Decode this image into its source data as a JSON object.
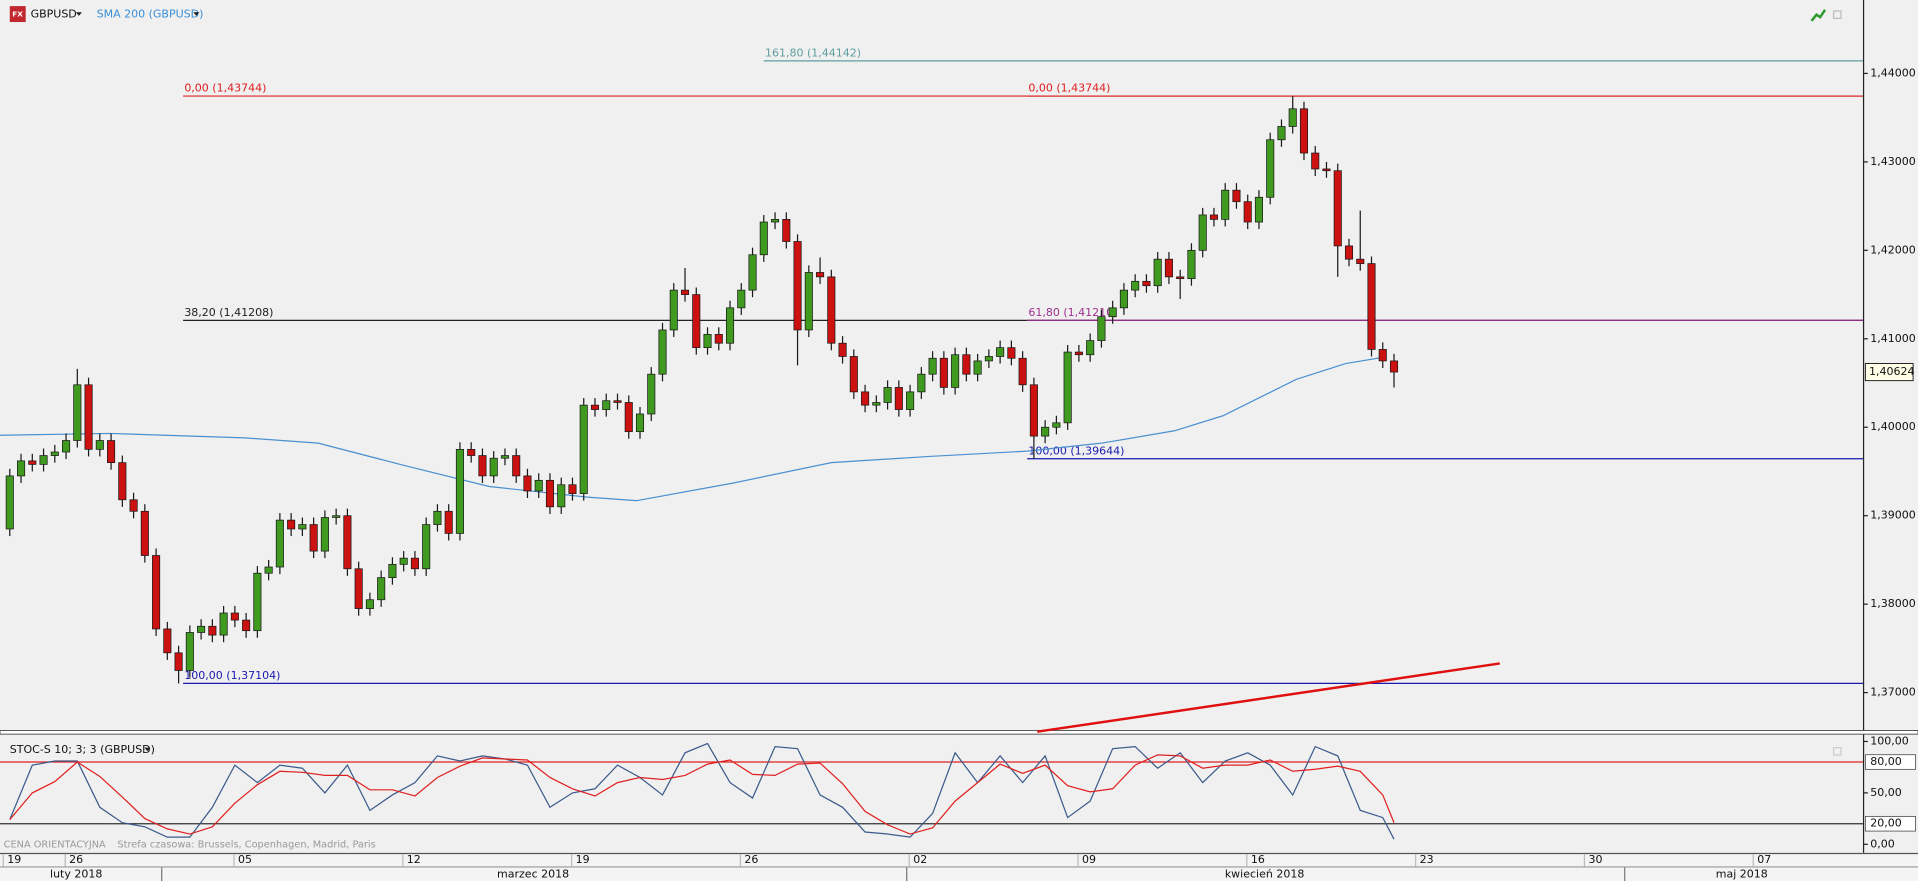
{
  "header": {
    "price_note": "CENA ORIENTACYJNA",
    "timezone": "Strefa czasowa: Brussels, Copenhagen, Madrid, Paris"
  },
  "chart_data": [
    {
      "type": "candlestick",
      "title": "GBPUSD",
      "x": [
        0,
        1,
        2,
        3,
        4,
        5,
        6,
        7,
        8,
        9,
        10,
        11,
        12,
        13,
        14,
        15,
        16,
        17,
        18,
        19,
        20,
        21,
        22,
        23,
        24,
        25,
        26,
        27,
        28,
        29,
        30,
        31,
        32,
        33,
        34,
        35,
        36,
        37,
        38,
        39,
        40,
        41,
        42,
        43,
        44,
        45,
        46,
        47,
        48,
        49,
        50,
        51,
        52,
        53,
        54,
        55,
        56,
        57,
        58,
        59,
        60,
        61,
        62,
        63,
        64,
        65,
        66,
        67,
        68,
        69,
        70,
        71,
        72,
        73,
        74,
        75,
        76,
        77,
        78,
        79,
        80,
        81,
        82,
        83,
        84,
        85,
        86,
        87,
        88,
        89,
        90,
        91,
        92,
        93,
        94,
        95,
        96,
        97,
        98,
        99,
        100,
        101,
        102,
        103,
        104,
        105,
        106,
        107,
        108,
        109,
        110,
        111,
        112,
        113,
        114,
        115,
        116,
        117,
        118,
        119,
        120,
        121,
        122,
        123
      ],
      "open": [
        1.3885,
        1.3945,
        1.3962,
        1.3958,
        1.3968,
        1.3972,
        1.3985,
        1.4048,
        1.3975,
        1.3985,
        1.396,
        1.3918,
        1.3905,
        1.3855,
        1.3772,
        1.3745,
        1.3725,
        1.3768,
        1.3775,
        1.3765,
        1.379,
        1.3782,
        1.377,
        1.3835,
        1.3842,
        1.3895,
        1.3885,
        1.389,
        1.386,
        1.3898,
        1.39,
        1.384,
        1.3795,
        1.3805,
        1.383,
        1.3845,
        1.3852,
        1.384,
        1.389,
        1.3905,
        1.388,
        1.3975,
        1.3968,
        1.3945,
        1.3965,
        1.3968,
        1.3945,
        1.3928,
        1.394,
        1.391,
        1.3935,
        1.3925,
        1.4025,
        1.402,
        1.403,
        1.4028,
        1.3995,
        1.4015,
        1.406,
        1.411,
        1.4155,
        1.415,
        1.409,
        1.4105,
        1.4095,
        1.4135,
        1.4155,
        1.4195,
        1.4232,
        1.4235,
        1.421,
        1.411,
        1.4175,
        1.417,
        1.4095,
        1.408,
        1.404,
        1.4025,
        1.4028,
        1.4045,
        1.402,
        1.404,
        1.406,
        1.4078,
        1.4045,
        1.4082,
        1.406,
        1.4075,
        1.408,
        1.409,
        1.4078,
        1.4048,
        1.399,
        1.4,
        1.4005,
        1.4085,
        1.4082,
        1.4098,
        1.4125,
        1.4135,
        1.4155,
        1.4165,
        1.416,
        1.419,
        1.417,
        1.4168,
        1.42,
        1.424,
        1.4235,
        1.4268,
        1.4255,
        1.4232,
        1.426,
        1.4325,
        1.434,
        1.436,
        1.431,
        1.4292,
        1.429,
        1.4205,
        1.419,
        1.4185,
        1.4088,
        1.4075
      ],
      "high": [
        1.3953,
        1.397,
        1.397,
        1.3976,
        1.398,
        1.3993,
        1.4066,
        1.4056,
        1.3993,
        1.3993,
        1.3968,
        1.3926,
        1.3913,
        1.3863,
        1.378,
        1.3753,
        1.3776,
        1.3783,
        1.3783,
        1.3798,
        1.3798,
        1.379,
        1.3843,
        1.385,
        1.3903,
        1.3903,
        1.3898,
        1.3898,
        1.3906,
        1.3908,
        1.3908,
        1.3848,
        1.3813,
        1.3838,
        1.3853,
        1.386,
        1.386,
        1.3898,
        1.3913,
        1.3913,
        1.3983,
        1.3983,
        1.3976,
        1.3973,
        1.3976,
        1.3976,
        1.3953,
        1.3948,
        1.3948,
        1.3943,
        1.3943,
        1.4033,
        1.4033,
        1.4038,
        1.4038,
        1.4036,
        1.4023,
        1.4068,
        1.4118,
        1.4163,
        1.418,
        1.4158,
        1.4113,
        1.4113,
        1.4143,
        1.4163,
        1.4203,
        1.424,
        1.4243,
        1.4243,
        1.4218,
        1.4183,
        1.4192,
        1.4178,
        1.4103,
        1.4088,
        1.4048,
        1.4036,
        1.4053,
        1.4053,
        1.4048,
        1.4068,
        1.4086,
        1.4086,
        1.409,
        1.409,
        1.4083,
        1.4088,
        1.4098,
        1.4098,
        1.4086,
        1.4056,
        1.4008,
        1.4013,
        1.4093,
        1.4093,
        1.4106,
        1.4133,
        1.4143,
        1.4163,
        1.4173,
        1.4173,
        1.4198,
        1.4198,
        1.4178,
        1.4208,
        1.4248,
        1.4248,
        1.4276,
        1.4276,
        1.4263,
        1.4268,
        1.4333,
        1.4348,
        1.43744,
        1.4368,
        1.4318,
        1.43,
        1.4298,
        1.4213,
        1.4245,
        1.4193,
        1.4096,
        1.4083
      ],
      "low": [
        1.3877,
        1.3937,
        1.395,
        1.395,
        1.396,
        1.3964,
        1.3977,
        1.3967,
        1.3967,
        1.3952,
        1.391,
        1.3897,
        1.3847,
        1.3764,
        1.3737,
        1.37104,
        1.3717,
        1.376,
        1.3757,
        1.3757,
        1.3774,
        1.3762,
        1.3762,
        1.3827,
        1.3834,
        1.3877,
        1.3877,
        1.3852,
        1.3852,
        1.389,
        1.3832,
        1.3787,
        1.3787,
        1.3797,
        1.3822,
        1.3837,
        1.3832,
        1.3832,
        1.3882,
        1.3872,
        1.3872,
        1.396,
        1.3937,
        1.3937,
        1.3957,
        1.3937,
        1.392,
        1.392,
        1.3902,
        1.3902,
        1.3917,
        1.3917,
        1.4012,
        1.4012,
        1.402,
        1.3987,
        1.3987,
        1.4007,
        1.4052,
        1.4102,
        1.4142,
        1.4082,
        1.4082,
        1.4087,
        1.4087,
        1.4127,
        1.4147,
        1.4187,
        1.4224,
        1.4202,
        1.407,
        1.4102,
        1.4162,
        1.4087,
        1.4072,
        1.4032,
        1.4017,
        1.4017,
        1.402,
        1.4012,
        1.4012,
        1.4032,
        1.4052,
        1.4037,
        1.4037,
        1.4052,
        1.4052,
        1.4067,
        1.4072,
        1.407,
        1.404,
        1.39644,
        1.3982,
        1.3992,
        1.3997,
        1.4074,
        1.4074,
        1.409,
        1.4117,
        1.4127,
        1.4147,
        1.4152,
        1.4152,
        1.4162,
        1.4145,
        1.416,
        1.4192,
        1.4227,
        1.4227,
        1.4247,
        1.4224,
        1.4224,
        1.4252,
        1.4317,
        1.4332,
        1.4302,
        1.4284,
        1.4282,
        1.417,
        1.4182,
        1.4177,
        1.408,
        1.4067,
        1.4045
      ],
      "close": [
        1.3945,
        1.3962,
        1.3958,
        1.3968,
        1.3972,
        1.3985,
        1.4048,
        1.3975,
        1.3985,
        1.396,
        1.3918,
        1.3905,
        1.3855,
        1.3772,
        1.3745,
        1.3725,
        1.3768,
        1.3775,
        1.3765,
        1.379,
        1.3782,
        1.377,
        1.3835,
        1.3842,
        1.3895,
        1.3885,
        1.389,
        1.386,
        1.3898,
        1.39,
        1.384,
        1.3795,
        1.3805,
        1.383,
        1.3845,
        1.3852,
        1.384,
        1.389,
        1.3905,
        1.388,
        1.3975,
        1.3968,
        1.3945,
        1.3965,
        1.3968,
        1.3945,
        1.3928,
        1.394,
        1.391,
        1.3935,
        1.3925,
        1.4025,
        1.402,
        1.403,
        1.4028,
        1.3995,
        1.4015,
        1.406,
        1.411,
        1.4155,
        1.415,
        1.409,
        1.4105,
        1.4095,
        1.4135,
        1.4155,
        1.4195,
        1.4232,
        1.4235,
        1.421,
        1.411,
        1.4175,
        1.417,
        1.4095,
        1.408,
        1.404,
        1.4025,
        1.4028,
        1.4045,
        1.402,
        1.404,
        1.406,
        1.4078,
        1.4045,
        1.4082,
        1.406,
        1.4075,
        1.408,
        1.409,
        1.4078,
        1.4048,
        1.399,
        1.4,
        1.4005,
        1.4085,
        1.4082,
        1.4098,
        1.4125,
        1.4135,
        1.4155,
        1.4165,
        1.416,
        1.419,
        1.417,
        1.4168,
        1.42,
        1.424,
        1.4235,
        1.4268,
        1.4255,
        1.4232,
        1.426,
        1.4325,
        1.434,
        1.436,
        1.431,
        1.4292,
        1.429,
        1.4205,
        1.419,
        1.4185,
        1.4088,
        1.4075,
        1.40624
      ],
      "up_color": "#3f9a1f",
      "down_color": "#cc1111",
      "xlim": [
        -0.87,
        164.67
      ],
      "ylim": [
        1.36558,
        1.4483
      ],
      "yticks": [
        {
          "value": 1.37,
          "label": "1,37000"
        },
        {
          "value": 1.38,
          "label": "1,38000"
        },
        {
          "value": 1.39,
          "label": "1,39000"
        },
        {
          "value": 1.4,
          "label": "1,40000"
        },
        {
          "value": 1.41,
          "label": "1,41000"
        },
        {
          "value": 1.42,
          "label": "1,42000"
        },
        {
          "value": 1.43,
          "label": "1,43000"
        },
        {
          "value": 1.44,
          "label": "1,44000"
        }
      ],
      "xticks": [
        {
          "value": 0.4,
          "label": "19"
        },
        {
          "value": 5.9,
          "label": "26"
        },
        {
          "value": 20.9,
          "label": "05"
        },
        {
          "value": 35.9,
          "label": "12"
        },
        {
          "value": 50.9,
          "label": "19"
        },
        {
          "value": 65.9,
          "label": "26"
        },
        {
          "value": 80.9,
          "label": "02"
        },
        {
          "value": 95.9,
          "label": "09"
        },
        {
          "value": 110.9,
          "label": "16"
        },
        {
          "value": 125.9,
          "label": "23"
        },
        {
          "value": 140.9,
          "label": "30"
        },
        {
          "value": 155.9,
          "label": "07"
        }
      ],
      "month_labels": [
        {
          "value": 5.9,
          "label": "luty 2018"
        },
        {
          "value": 46.5,
          "label": "marzec 2018"
        },
        {
          "value": 111.5,
          "label": "kwiecień 2018"
        },
        {
          "value": 153.9,
          "label": "maj 2018"
        }
      ],
      "month_dividers": [
        13.5,
        79.7,
        143.5
      ],
      "series": [
        {
          "name": "SMA 200 (GBPUSD)",
          "color": "#4a90d0",
          "x": [
            -0.9,
            8.9,
            20.9,
            27.4,
            35,
            42.6,
            51.3,
            55.7,
            64.3,
            73,
            81.7,
            90.4,
            97,
            103.5,
            107.8,
            114.3,
            118.7,
            122
          ],
          "values": [
            1.3991,
            1.3993,
            1.3988,
            1.3982,
            1.3957,
            1.3933,
            1.3921,
            1.3917,
            1.3937,
            1.396,
            1.3967,
            1.3973,
            1.3982,
            1.3996,
            1.4013,
            1.4054,
            1.4072,
            1.4079
          ]
        }
      ],
      "levels": [
        {
          "label": "161,80 (1,44142)",
          "value": 1.44142,
          "start": 67,
          "color": "#5f9ea0"
        },
        {
          "label": "0,00 (1,43744)",
          "value": 1.43744,
          "start": 15.4,
          "color": "#e02020"
        },
        {
          "label": "0,00 (1,43744)",
          "value": 1.43744,
          "start": 90.4,
          "color": "#e02020"
        },
        {
          "label": "38,20 (1,41208)",
          "value": 1.41208,
          "start": 15.4,
          "color": "#222222"
        },
        {
          "label": "61,80 (1,41210)",
          "value": 1.4121,
          "start": 90.4,
          "color": "#a03090"
        },
        {
          "label": "100,00 (1,39644)",
          "value": 1.39644,
          "start": 90.4,
          "color": "#1a1ab0"
        },
        {
          "label": "100,00 (1,37104)",
          "value": 1.37104,
          "start": 15.4,
          "color": "#1a1ab0"
        }
      ],
      "trendline": {
        "x": [
          91.3,
          132.4
        ],
        "y": [
          1.36558,
          1.3733
        ],
        "color": "#e01010"
      },
      "last_price": {
        "value": 1.40624,
        "label": "1,40624"
      }
    },
    {
      "type": "line",
      "title": "STOC-S 10; 3; 3 (GBPUSD)",
      "x": [
        0,
        2,
        4,
        6,
        8,
        10,
        12,
        14,
        16,
        18,
        20,
        22,
        24,
        26,
        28,
        30,
        32,
        34,
        36,
        38,
        40,
        42,
        44,
        46,
        48,
        50,
        52,
        54,
        56,
        58,
        60,
        62,
        64,
        66,
        68,
        70,
        72,
        74,
        76,
        78,
        80,
        82,
        84,
        86,
        88,
        90,
        92,
        94,
        96,
        98,
        100,
        102,
        104,
        106,
        108,
        110,
        112,
        114,
        116,
        118,
        120,
        122,
        123
      ],
      "series": [
        {
          "color": "#3a5a8a",
          "values": [
            24,
            77,
            81,
            81,
            36,
            21,
            17,
            7,
            7,
            36,
            77,
            60,
            77,
            74,
            50,
            77,
            33,
            48,
            60,
            86,
            81,
            86,
            83,
            77,
            36,
            50,
            54,
            77,
            65,
            48,
            89,
            98,
            60,
            45,
            95,
            93,
            48,
            36,
            12,
            10,
            7,
            30,
            89,
            60,
            86,
            60,
            86,
            26,
            42,
            93,
            95,
            74,
            89,
            60,
            81,
            89,
            77,
            48,
            95,
            86,
            33,
            26,
            5
          ]
        },
        {
          "color": "#e02020",
          "values": [
            24,
            50,
            61,
            80,
            66,
            46,
            25,
            15,
            10,
            17,
            40,
            58,
            71,
            70,
            67,
            67,
            53,
            53,
            47,
            65,
            76,
            84,
            83,
            82,
            65,
            54,
            47,
            60,
            65,
            63,
            67,
            78,
            82,
            68,
            67,
            78,
            79,
            59,
            32,
            19,
            10,
            16,
            42,
            60,
            78,
            69,
            77,
            57,
            51,
            54,
            77,
            87,
            86,
            74,
            77,
            77,
            82,
            71,
            73,
            76,
            71,
            48,
            21
          ]
        }
      ],
      "xlim": [
        -0.87,
        164.67
      ],
      "ylim": [
        -8.3,
        107.1
      ],
      "yticks": [
        {
          "value": 0,
          "label": "0,00"
        },
        {
          "value": 50,
          "label": "50,00"
        },
        {
          "value": 100,
          "label": "100,00"
        }
      ],
      "levels": [
        {
          "value": 80,
          "label": "80,00",
          "color": "#e02020"
        },
        {
          "value": 20,
          "label": "20,00",
          "color": "#333333"
        }
      ]
    }
  ]
}
